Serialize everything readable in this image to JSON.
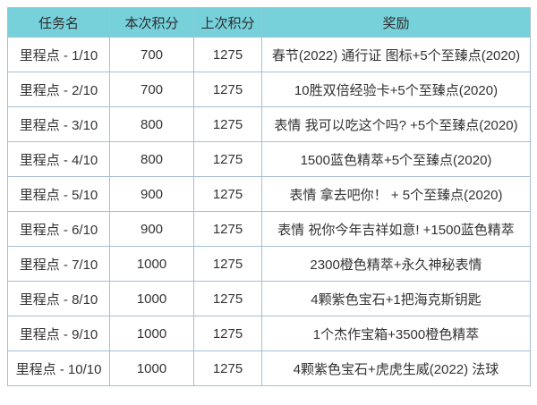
{
  "chart_data": {
    "type": "table",
    "columns": [
      {
        "key": "task",
        "label": "任务名"
      },
      {
        "key": "current",
        "label": "本次积分"
      },
      {
        "key": "last",
        "label": "上次积分"
      },
      {
        "key": "reward",
        "label": "奖励"
      }
    ],
    "rows": [
      {
        "task": "里程点 - 1/10",
        "current": "700",
        "last": "1275",
        "reward": "春节(2022) 通行证 图标+5个至臻点(2020)"
      },
      {
        "task": "里程点 - 2/10",
        "current": "700",
        "last": "1275",
        "reward": "10胜双倍经验卡+5个至臻点(2020)"
      },
      {
        "task": "里程点 - 3/10",
        "current": "800",
        "last": "1275",
        "reward": "表情 我可以吃这个吗? +5个至臻点(2020)"
      },
      {
        "task": "里程点 - 4/10",
        "current": "800",
        "last": "1275",
        "reward": "1500蓝色精萃+5个至臻点(2020)"
      },
      {
        "task": "里程点 - 5/10",
        "current": "900",
        "last": "1275",
        "reward": "表情 拿去吧你！ + 5个至臻点(2020)"
      },
      {
        "task": "里程点 - 6/10",
        "current": "900",
        "last": "1275",
        "reward": "表情 祝你今年吉祥如意! +1500蓝色精萃"
      },
      {
        "task": "里程点 - 7/10",
        "current": "1000",
        "last": "1275",
        "reward": "2300橙色精萃+永久神秘表情"
      },
      {
        "task": "里程点 - 8/10",
        "current": "1000",
        "last": "1275",
        "reward": "4颗紫色宝石+1把海克斯钥匙"
      },
      {
        "task": "里程点 - 9/10",
        "current": "1000",
        "last": "1275",
        "reward": "1个杰作宝箱+3500橙色精萃"
      },
      {
        "task": "里程点 - 10/10",
        "current": "1000",
        "last": "1275",
        "reward": "4颗紫色宝石+虎虎生威(2022) 法球"
      }
    ]
  },
  "colors": {
    "header_bg": "#76D1DB",
    "border": "#A7BFD2",
    "text": "#333333",
    "row_bg": "#FFFFFF",
    "page_bg": "#FFFFFF"
  }
}
